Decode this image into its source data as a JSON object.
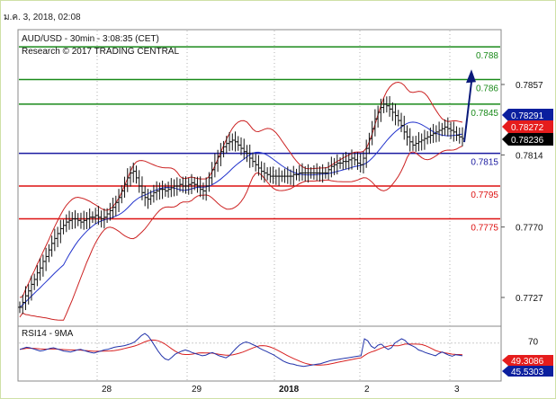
{
  "header": {
    "datestamp": "ม.ค. 3, 2018, 02:08",
    "chart_title": "AUD/USD - 30min - 3:08:35 (CET)",
    "copyright": "Research © 2017 TRADING CENTRAL"
  },
  "colors": {
    "resistance": "#1a8a1a",
    "pivot": "#1a1aa0",
    "support": "#dd1111",
    "bollinger": "#cc2222",
    "moving_average": "#2233cc",
    "price_bars": "#111111",
    "current_price_tag": "#000000",
    "upper_tag": "#0b1f9e",
    "middle_tag": "#e51c1c",
    "arrow": "#0a1a7a"
  },
  "chart_data": [
    {
      "type": "line",
      "panel": "price",
      "ylim": [
        0.77,
        0.79
      ],
      "x_tick_labels": [
        "28",
        "29",
        "2018",
        "2",
        "3"
      ],
      "y_tick_labels": [
        "0.7857",
        "0.7814",
        "0.7770",
        "0.7727"
      ],
      "y_tick_values": [
        0.7857,
        0.7814,
        0.777,
        0.7727
      ],
      "levels": [
        {
          "label": "0.788",
          "value": 0.788,
          "kind": "resistance"
        },
        {
          "label": "0.786",
          "value": 0.786,
          "kind": "resistance"
        },
        {
          "label": "0.7845",
          "value": 0.7845,
          "kind": "resistance"
        },
        {
          "label": "0.7815",
          "value": 0.7815,
          "kind": "pivot"
        },
        {
          "label": "0.7795",
          "value": 0.7795,
          "kind": "support"
        },
        {
          "label": "0.7775",
          "value": 0.7775,
          "kind": "support"
        }
      ],
      "price_tags": [
        {
          "label": "0.78291",
          "value": 0.78291,
          "kind": "upper"
        },
        {
          "label": "0.78272",
          "value": 0.78272,
          "kind": "middle"
        },
        {
          "label": "0.78236",
          "value": 0.78236,
          "kind": "current"
        }
      ],
      "prices": [
        0.7721,
        0.7724,
        0.7728,
        0.7731,
        0.7735,
        0.7738,
        0.7742,
        0.7745,
        0.7749,
        0.7752,
        0.7756,
        0.776,
        0.7763,
        0.7766,
        0.7769,
        0.7771,
        0.7773,
        0.7774,
        0.7775,
        0.7775,
        0.7774,
        0.7773,
        0.7774,
        0.7775,
        0.7776,
        0.7776,
        0.7777,
        0.7776,
        0.7775,
        0.7776,
        0.7778,
        0.778,
        0.7782,
        0.7785,
        0.7788,
        0.7792,
        0.7796,
        0.78,
        0.7803,
        0.7804,
        0.78,
        0.7795,
        0.7791,
        0.7788,
        0.7787,
        0.7789,
        0.7791,
        0.7792,
        0.7793,
        0.7793,
        0.7792,
        0.7793,
        0.7794,
        0.7795,
        0.7795,
        0.7796,
        0.7795,
        0.7795,
        0.7796,
        0.7797,
        0.7796,
        0.7795,
        0.7793,
        0.7792,
        0.7795,
        0.78,
        0.7805,
        0.7809,
        0.7813,
        0.7816,
        0.7819,
        0.7821,
        0.7822,
        0.7823,
        0.7822,
        0.782,
        0.7818,
        0.7816,
        0.7815,
        0.7812,
        0.781,
        0.7808,
        0.7806,
        0.7804,
        0.7803,
        0.7802,
        0.7801,
        0.7801,
        0.7801,
        0.7801,
        0.7801,
        0.7801,
        0.7801,
        0.7801,
        0.7802,
        0.7802,
        0.7803,
        0.7803,
        0.7803,
        0.7803,
        0.7803,
        0.7803,
        0.7803,
        0.7803,
        0.7803,
        0.7803,
        0.7805,
        0.7807,
        0.7808,
        0.7809,
        0.7809,
        0.781,
        0.781,
        0.7811,
        0.7812,
        0.7811,
        0.7809,
        0.7808,
        0.7812,
        0.7818,
        0.7824,
        0.783,
        0.7836,
        0.784,
        0.7843,
        0.7845,
        0.7844,
        0.7842,
        0.784,
        0.7838,
        0.7835,
        0.7832,
        0.7828,
        0.7825,
        0.7822,
        0.782,
        0.7821,
        0.7822,
        0.7823,
        0.7824,
        0.7825,
        0.7826,
        0.7827,
        0.7828,
        0.7829,
        0.783,
        0.7831,
        0.783,
        0.7829,
        0.7828,
        0.7826,
        0.7825,
        0.7824
      ]
    },
    {
      "type": "line",
      "panel": "oscillator",
      "label": "RSI14 - 9MA",
      "ylim": [
        0,
        100
      ],
      "y_tick_labels": [
        "70"
      ],
      "y_tick_values": [
        70
      ],
      "value_tags": [
        {
          "label": "49.3086",
          "value": 49.3086,
          "kind": "middle"
        },
        {
          "label": "45.5303",
          "value": 45.5303,
          "kind": "upper"
        }
      ],
      "rsi": [
        58,
        60,
        62,
        61,
        59,
        57,
        55,
        56,
        58,
        60,
        61,
        59,
        57,
        55,
        54,
        53,
        55,
        57,
        58,
        56,
        54,
        52,
        51,
        53,
        55,
        57,
        58,
        60,
        62,
        63,
        64,
        65,
        67,
        69,
        72,
        78,
        84,
        88,
        83,
        74,
        64,
        54,
        46,
        40,
        38,
        43,
        49,
        52,
        55,
        57,
        55,
        52,
        50,
        48,
        46,
        47,
        50,
        52,
        49,
        46,
        44,
        42,
        46,
        53,
        60,
        66,
        70,
        72,
        70,
        67,
        64,
        60,
        57,
        54,
        51,
        48,
        44,
        40,
        36,
        33,
        31,
        30,
        28,
        27,
        26,
        27,
        28,
        29,
        30,
        31,
        33,
        35,
        37,
        38,
        39,
        40,
        41,
        42,
        43,
        44,
        45,
        46,
        78,
        74,
        64,
        60,
        66,
        68,
        62,
        58,
        61,
        70,
        74,
        78,
        75,
        68,
        65,
        62,
        57,
        55,
        52,
        50,
        48,
        46,
        50,
        53,
        50,
        47,
        45,
        48,
        47,
        46
      ]
    }
  ]
}
